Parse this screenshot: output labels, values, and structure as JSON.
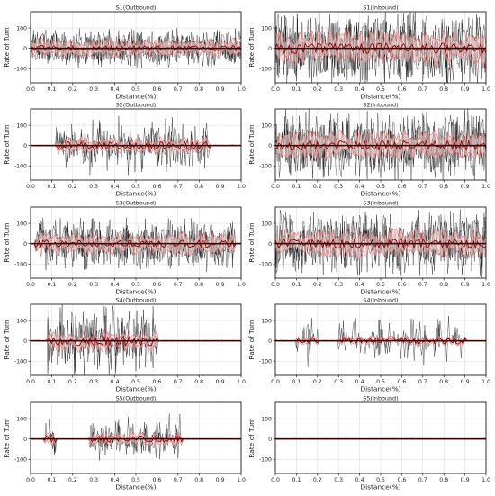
{
  "figure": {
    "layout": "5 rows x 2 columns",
    "line_color": "#000000",
    "band_color": "#e05a5a",
    "band_fill_color": "#f4c6c6",
    "mean_color": "#8b0000",
    "grid_color": "#dddddd"
  },
  "chart_data": [
    {
      "type": "line",
      "title": "S1(Outbound)",
      "xlabel": "Distance(%)",
      "ylabel": "Rate of Turn",
      "xlim": [
        0,
        1.0
      ],
      "ylim": [
        -170,
        180
      ],
      "xticks": [
        "0.0",
        "0.1",
        "0.2",
        "0.3",
        "0.4",
        "0.5",
        "0.6",
        "0.7",
        "0.8",
        "0.9",
        "1.0"
      ],
      "yticks": [
        100,
        0,
        -100
      ],
      "grid": true,
      "profile": {
        "amplitude": 90,
        "activity": 0.95,
        "segments": [
          [
            0,
            1
          ]
        ]
      }
    },
    {
      "type": "line",
      "title": "S1(Inbound)",
      "xlabel": "Distance(%)",
      "ylabel": "Rate of Turn",
      "xlim": [
        0,
        1.0
      ],
      "ylim": [
        -170,
        180
      ],
      "xticks": [
        "0.0",
        "0.1",
        "0.2",
        "0.3",
        "0.4",
        "0.5",
        "0.6",
        "0.7",
        "0.8",
        "0.9",
        "1.0"
      ],
      "yticks": [
        100,
        0,
        -100
      ],
      "grid": true,
      "profile": {
        "amplitude": 170,
        "activity": 0.98,
        "segments": [
          [
            0,
            1
          ]
        ]
      }
    },
    {
      "type": "line",
      "title": "S2(Outbound)",
      "xlabel": "Distance(%)",
      "ylabel": "Rate of Turn",
      "xlim": [
        0,
        1.0
      ],
      "ylim": [
        -170,
        180
      ],
      "xticks": [
        "0.0",
        "0.1",
        "0.2",
        "0.3",
        "0.4",
        "0.5",
        "0.6",
        "0.7",
        "0.8",
        "0.9",
        "1.0"
      ],
      "yticks": [
        100,
        0,
        -100
      ],
      "grid": true,
      "profile": {
        "amplitude": 130,
        "activity": 0.45,
        "segments": [
          [
            0.12,
            0.85
          ]
        ]
      }
    },
    {
      "type": "line",
      "title": "S2(Inbound)",
      "xlabel": "Distance(%)",
      "ylabel": "Rate of Turn",
      "xlim": [
        0,
        1.0
      ],
      "ylim": [
        -170,
        180
      ],
      "xticks": [
        "0.0",
        "0.1",
        "0.2",
        "0.3",
        "0.4",
        "0.5",
        "0.6",
        "0.7",
        "0.8",
        "0.9",
        "1.0"
      ],
      "yticks": [
        100,
        0,
        -100
      ],
      "grid": true,
      "profile": {
        "amplitude": 160,
        "activity": 0.9,
        "segments": [
          [
            0,
            1
          ]
        ]
      }
    },
    {
      "type": "line",
      "title": "S3(Outbound)",
      "xlabel": "Distance(%)",
      "ylabel": "Rate of Turn",
      "xlim": [
        0,
        1.0
      ],
      "ylim": [
        -170,
        180
      ],
      "xticks": [
        "0.0",
        "0.1",
        "0.2",
        "0.3",
        "0.4",
        "0.5",
        "0.6",
        "0.7",
        "0.8",
        "0.9",
        "1.0"
      ],
      "yticks": [
        100,
        0,
        -100
      ],
      "grid": true,
      "profile": {
        "amplitude": 120,
        "activity": 0.85,
        "segments": [
          [
            0.02,
            0.97
          ]
        ]
      }
    },
    {
      "type": "line",
      "title": "S3(Inbound)",
      "xlabel": "Distance(%)",
      "ylabel": "Rate of Turn",
      "xlim": [
        0,
        1.0
      ],
      "ylim": [
        -170,
        180
      ],
      "xticks": [
        "0.0",
        "0.1",
        "0.2",
        "0.3",
        "0.4",
        "0.5",
        "0.6",
        "0.7",
        "0.8",
        "0.9",
        "1.0"
      ],
      "yticks": [
        100,
        0,
        -100
      ],
      "grid": true,
      "profile": {
        "amplitude": 150,
        "activity": 0.88,
        "segments": [
          [
            0,
            1
          ]
        ]
      }
    },
    {
      "type": "line",
      "title": "S4(Outbound)",
      "xlabel": "Distance(%)",
      "ylabel": "Rate of Turn",
      "xlim": [
        0,
        1.0
      ],
      "ylim": [
        -170,
        180
      ],
      "xticks": [
        "0.0",
        "0.1",
        "0.2",
        "0.3",
        "0.4",
        "0.5",
        "0.6",
        "0.7",
        "0.8",
        "0.9",
        "1.0"
      ],
      "yticks": [
        100,
        0,
        -100
      ],
      "grid": true,
      "profile": {
        "amplitude": 160,
        "activity": 0.5,
        "segments": [
          [
            0.08,
            0.6
          ]
        ]
      }
    },
    {
      "type": "line",
      "title": "S4(Inbound)",
      "xlabel": "Distance(%)",
      "ylabel": "Rate of Turn",
      "xlim": [
        0,
        1.0
      ],
      "ylim": [
        -170,
        180
      ],
      "xticks": [
        "0.0",
        "0.1",
        "0.2",
        "0.3",
        "0.4",
        "0.5",
        "0.6",
        "0.7",
        "0.8",
        "0.9",
        "1.0"
      ],
      "yticks": [
        100,
        0,
        -100
      ],
      "grid": true,
      "profile": {
        "amplitude": 110,
        "activity": 0.18,
        "segments": [
          [
            0.1,
            0.2
          ],
          [
            0.3,
            0.9
          ]
        ]
      }
    },
    {
      "type": "line",
      "title": "S5(Outbound)",
      "xlabel": "Distance(%)",
      "ylabel": "Rate of Turn",
      "xlim": [
        0,
        1.0
      ],
      "ylim": [
        -170,
        180
      ],
      "xticks": [
        "0.0",
        "0.1",
        "0.2",
        "0.3",
        "0.4",
        "0.5",
        "0.6",
        "0.7",
        "0.8",
        "0.9",
        "1.0"
      ],
      "yticks": [
        100,
        0,
        -100
      ],
      "grid": true,
      "profile": {
        "amplitude": 110,
        "activity": 0.4,
        "segments": [
          [
            0.06,
            0.12
          ],
          [
            0.28,
            0.72
          ]
        ]
      }
    },
    {
      "type": "line",
      "title": "S5(Inbound)",
      "xlabel": "Distance(%)",
      "ylabel": "Rate of Turn",
      "xlim": [
        0,
        1.0
      ],
      "ylim": [
        -170,
        180
      ],
      "xticks": [
        "0.0",
        "0.1",
        "0.2",
        "0.3",
        "0.4",
        "0.5",
        "0.6",
        "0.7",
        "0.8",
        "0.9",
        "1.0"
      ],
      "yticks": [
        100,
        0,
        -100
      ],
      "grid": true,
      "profile": {
        "amplitude": 0,
        "activity": 0,
        "segments": []
      }
    }
  ]
}
